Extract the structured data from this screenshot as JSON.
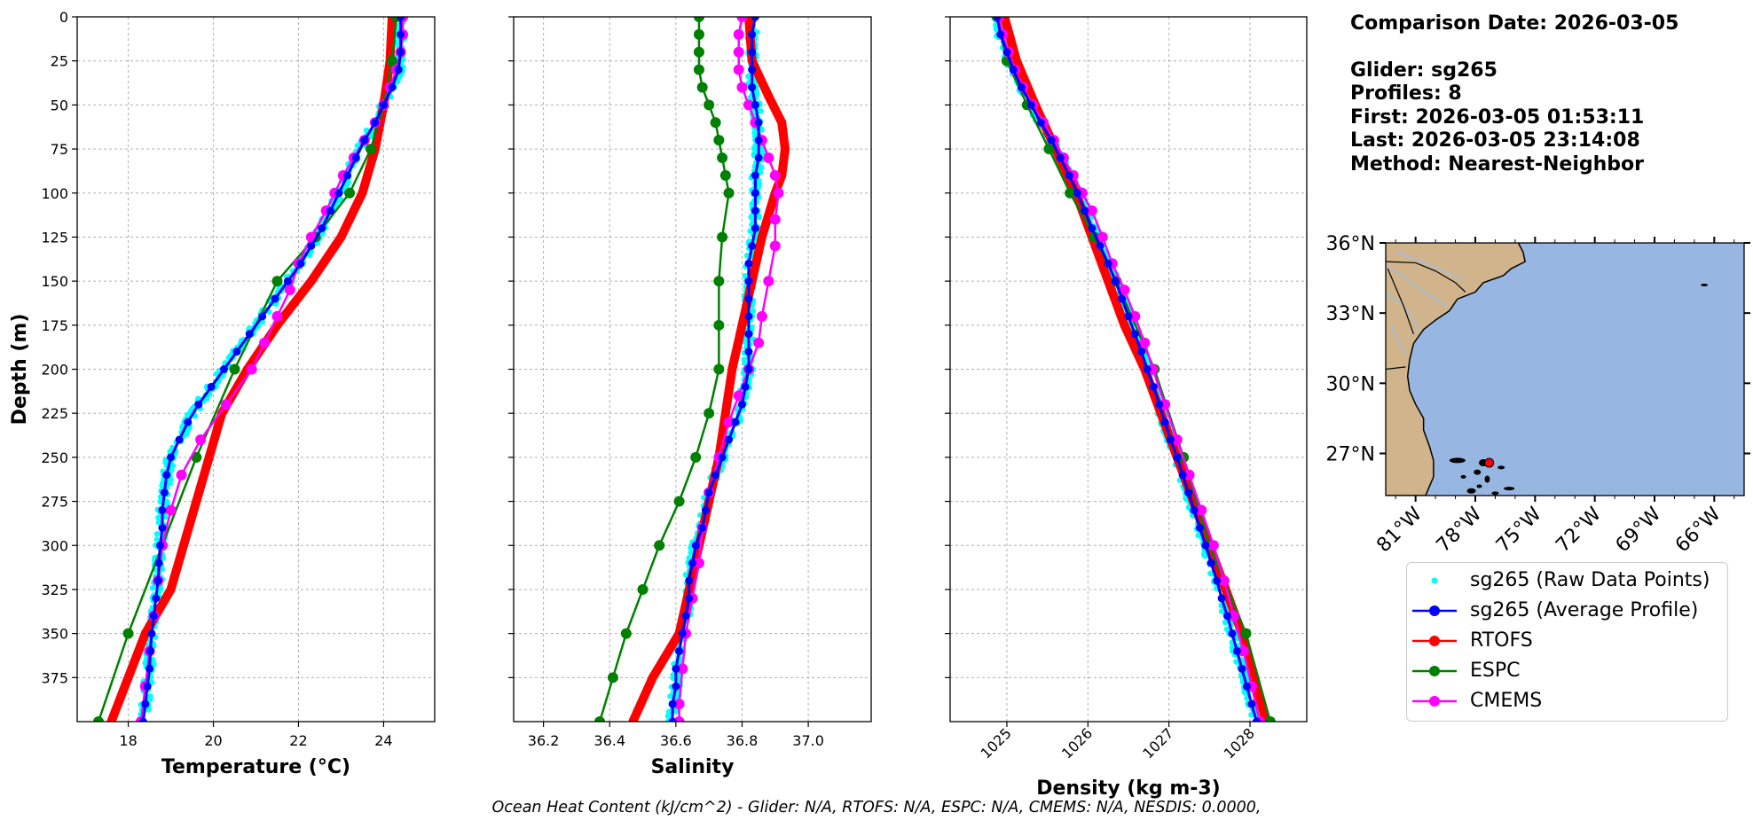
{
  "info": {
    "comparison_date": "Comparison Date: 2026-03-05",
    "glider": "Glider: sg265",
    "profiles": "Profiles: 8",
    "first": "First: 2026-03-05 01:53:11",
    "last": "Last: 2026-03-05 23:14:08",
    "method": "Method: Nearest-Neighbor"
  },
  "footer": "Ocean Heat Content (kJ/cm^2) - Glider: N/A,  RTOFS: N/A,  ESPC: N/A,  CMEMS: N/A,  NESDIS: 0.0000,",
  "legend": [
    {
      "label": "sg265 (Raw Data Points)",
      "color": "#00ffff",
      "style": "dot"
    },
    {
      "label": "sg265 (Average Profile)",
      "color": "#0000ff",
      "style": "line-marker"
    },
    {
      "label": "RTOFS",
      "color": "#ff0000",
      "style": "line-marker"
    },
    {
      "label": "ESPC",
      "color": "#008000",
      "style": "line-marker"
    },
    {
      "label": "CMEMS",
      "color": "#ff00ff",
      "style": "line-marker"
    }
  ],
  "colors": {
    "raw": "#00ffff",
    "glider": "#0000ff",
    "rtofs": "#ff0000",
    "espc": "#008000",
    "cmems": "#ff00ff",
    "land": "#d2b48c",
    "ocean": "#98b6e2"
  },
  "chart_data": [
    {
      "type": "line",
      "xlabel": "Temperature (°C)",
      "ylabel": "Depth (m)",
      "xlim": [
        16.8,
        25.2
      ],
      "ylim": [
        400,
        0
      ],
      "xticks": [
        18,
        20,
        22,
        24
      ],
      "yticks": [
        0,
        25,
        50,
        75,
        100,
        125,
        150,
        175,
        200,
        225,
        250,
        275,
        300,
        325,
        350,
        375
      ],
      "grid": true,
      "series": [
        {
          "name": "sg265 (Average Profile)",
          "depth": [
            0,
            10,
            20,
            30,
            40,
            50,
            60,
            70,
            80,
            90,
            100,
            110,
            120,
            130,
            140,
            150,
            160,
            170,
            180,
            190,
            200,
            210,
            220,
            230,
            240,
            250,
            260,
            270,
            280,
            290,
            300,
            310,
            320,
            330,
            340,
            350,
            360,
            370,
            380,
            390,
            400
          ],
          "values": [
            24.4,
            24.4,
            24.4,
            24.35,
            24.2,
            24.0,
            23.8,
            23.55,
            23.35,
            23.15,
            22.95,
            22.75,
            22.55,
            22.3,
            22.05,
            21.75,
            21.45,
            21.15,
            20.85,
            20.55,
            20.25,
            19.95,
            19.65,
            19.4,
            19.2,
            19.0,
            18.9,
            18.85,
            18.8,
            18.8,
            18.75,
            18.72,
            18.7,
            18.65,
            18.6,
            18.55,
            18.52,
            18.5,
            18.45,
            18.4,
            18.35
          ]
        },
        {
          "name": "RTOFS",
          "depth": [
            0,
            25,
            50,
            75,
            100,
            125,
            150,
            175,
            200,
            225,
            250,
            275,
            300,
            325,
            350,
            375,
            400
          ],
          "values": [
            24.2,
            24.15,
            24.0,
            23.8,
            23.5,
            23.0,
            22.3,
            21.5,
            20.8,
            20.2,
            19.9,
            19.6,
            19.3,
            19.0,
            18.4,
            18.0,
            17.6
          ]
        },
        {
          "name": "ESPC",
          "depth": [
            0,
            25,
            50,
            75,
            100,
            125,
            150,
            200,
            250,
            300,
            350,
            400
          ],
          "values": [
            24.3,
            24.2,
            24.0,
            23.7,
            23.2,
            22.4,
            21.5,
            20.5,
            19.6,
            18.8,
            18.0,
            17.3
          ]
        },
        {
          "name": "CMEMS",
          "depth": [
            0,
            10,
            20,
            30,
            40,
            50,
            60,
            70,
            80,
            90,
            100,
            110,
            125,
            140,
            155,
            170,
            185,
            200,
            220,
            240,
            260,
            280,
            300,
            320,
            340,
            360,
            380,
            400
          ],
          "values": [
            24.45,
            24.45,
            24.4,
            24.3,
            24.15,
            24.0,
            23.8,
            23.55,
            23.3,
            23.05,
            22.85,
            22.65,
            22.3,
            22.0,
            21.8,
            21.5,
            21.2,
            20.9,
            20.3,
            19.7,
            19.25,
            19.0,
            18.8,
            18.7,
            18.6,
            18.5,
            18.4,
            18.3
          ]
        }
      ]
    },
    {
      "type": "line",
      "xlabel": "Salinity",
      "xlim": [
        36.11,
        37.19
      ],
      "ylim": [
        400,
        0
      ],
      "xticks": [
        36.2,
        36.4,
        36.6,
        36.8,
        37.0
      ],
      "grid": true,
      "series": [
        {
          "name": "sg265 (Average Profile)",
          "depth": [
            0,
            10,
            20,
            30,
            40,
            50,
            60,
            70,
            80,
            90,
            100,
            110,
            120,
            130,
            140,
            150,
            160,
            170,
            180,
            190,
            200,
            210,
            220,
            230,
            240,
            250,
            260,
            270,
            280,
            290,
            300,
            310,
            320,
            330,
            340,
            350,
            360,
            370,
            380,
            390,
            400
          ],
          "values": [
            36.84,
            36.83,
            36.83,
            36.83,
            36.83,
            36.84,
            36.85,
            36.85,
            36.85,
            36.84,
            36.84,
            36.84,
            36.84,
            36.83,
            36.82,
            36.82,
            36.82,
            36.82,
            36.82,
            36.82,
            36.82,
            36.81,
            36.8,
            36.78,
            36.76,
            36.74,
            36.72,
            36.7,
            36.69,
            36.68,
            36.66,
            36.65,
            36.64,
            36.64,
            36.63,
            36.62,
            36.61,
            36.6,
            36.6,
            36.59,
            36.59
          ]
        },
        {
          "name": "RTOFS",
          "depth": [
            0,
            25,
            45,
            60,
            75,
            90,
            100,
            125,
            150,
            175,
            200,
            225,
            250,
            275,
            300,
            325,
            350,
            375,
            400
          ],
          "values": [
            36.82,
            36.83,
            36.88,
            36.92,
            36.93,
            36.92,
            36.9,
            36.86,
            36.83,
            36.8,
            36.77,
            36.75,
            36.73,
            36.7,
            36.67,
            36.64,
            36.61,
            36.53,
            36.47
          ]
        },
        {
          "name": "ESPC",
          "depth": [
            0,
            10,
            20,
            30,
            40,
            50,
            60,
            70,
            80,
            90,
            100,
            125,
            150,
            175,
            200,
            225,
            250,
            275,
            300,
            325,
            350,
            375,
            400
          ],
          "values": [
            36.67,
            36.67,
            36.67,
            36.67,
            36.68,
            36.7,
            36.72,
            36.73,
            36.74,
            36.75,
            36.76,
            36.74,
            36.73,
            36.73,
            36.73,
            36.7,
            36.66,
            36.61,
            36.55,
            36.5,
            36.45,
            36.41,
            36.37
          ]
        },
        {
          "name": "CMEMS",
          "depth": [
            0,
            10,
            20,
            30,
            40,
            50,
            60,
            70,
            80,
            90,
            100,
            115,
            130,
            150,
            170,
            185,
            200,
            215,
            230,
            250,
            270,
            290,
            310,
            330,
            350,
            370,
            390,
            400
          ],
          "values": [
            36.8,
            36.79,
            36.79,
            36.79,
            36.8,
            36.82,
            36.84,
            36.86,
            36.88,
            36.9,
            36.91,
            36.9,
            36.9,
            36.88,
            36.86,
            36.85,
            36.82,
            36.79,
            36.76,
            36.73,
            36.7,
            36.68,
            36.67,
            36.65,
            36.63,
            36.62,
            36.61,
            36.61
          ]
        }
      ]
    },
    {
      "type": "line",
      "xlabel": "Density (kg m-3)",
      "xlim": [
        1024.3,
        1028.7
      ],
      "ylim": [
        400,
        0
      ],
      "xticks": [
        1025,
        1026,
        1027,
        1028
      ],
      "grid": true,
      "series": [
        {
          "name": "sg265 (Average Profile)",
          "depth": [
            0,
            10,
            20,
            30,
            40,
            50,
            60,
            70,
            80,
            90,
            100,
            110,
            120,
            130,
            140,
            150,
            160,
            170,
            180,
            190,
            200,
            210,
            220,
            230,
            240,
            250,
            260,
            270,
            280,
            290,
            300,
            310,
            320,
            330,
            340,
            350,
            360,
            370,
            380,
            390,
            400
          ],
          "values": [
            1024.88,
            1024.92,
            1025.0,
            1025.08,
            1025.18,
            1025.3,
            1025.42,
            1025.55,
            1025.66,
            1025.77,
            1025.87,
            1025.96,
            1026.05,
            1026.15,
            1026.25,
            1026.34,
            1026.42,
            1026.5,
            1026.58,
            1026.66,
            1026.73,
            1026.81,
            1026.88,
            1026.95,
            1027.02,
            1027.1,
            1027.17,
            1027.24,
            1027.31,
            1027.38,
            1027.45,
            1027.52,
            1027.59,
            1027.65,
            1027.72,
            1027.78,
            1027.84,
            1027.9,
            1027.96,
            1028.02,
            1028.08
          ]
        },
        {
          "name": "RTOFS",
          "depth": [
            0,
            25,
            50,
            75,
            100,
            125,
            150,
            175,
            200,
            225,
            250,
            275,
            300,
            325,
            350,
            375,
            400
          ],
          "values": [
            1024.97,
            1025.12,
            1025.35,
            1025.6,
            1025.85,
            1026.05,
            1026.25,
            1026.45,
            1026.7,
            1026.9,
            1027.1,
            1027.3,
            1027.5,
            1027.7,
            1027.9,
            1028.05,
            1028.2
          ]
        },
        {
          "name": "ESPC",
          "depth": [
            0,
            25,
            50,
            75,
            100,
            125,
            150,
            200,
            250,
            300,
            350,
            400
          ],
          "values": [
            1024.88,
            1025.0,
            1025.25,
            1025.52,
            1025.78,
            1026.08,
            1026.35,
            1026.82,
            1027.18,
            1027.5,
            1027.95,
            1028.25
          ]
        },
        {
          "name": "CMEMS",
          "depth": [
            0,
            10,
            20,
            30,
            40,
            50,
            60,
            70,
            80,
            90,
            100,
            110,
            125,
            140,
            155,
            170,
            185,
            200,
            220,
            240,
            260,
            280,
            300,
            320,
            340,
            360,
            380,
            400
          ],
          "values": [
            1024.9,
            1024.95,
            1025.02,
            1025.1,
            1025.2,
            1025.32,
            1025.45,
            1025.58,
            1025.7,
            1025.82,
            1025.93,
            1026.05,
            1026.18,
            1026.3,
            1026.45,
            1026.58,
            1026.7,
            1026.8,
            1026.95,
            1027.1,
            1027.25,
            1027.4,
            1027.55,
            1027.68,
            1027.8,
            1027.92,
            1028.02,
            1028.12
          ]
        }
      ]
    },
    {
      "type": "scatter",
      "map": true,
      "lon_range": [
        -82.5,
        -64.5
      ],
      "lat_range": [
        25.2,
        36.0
      ],
      "xticks": [
        "81°W",
        "78°W",
        "75°W",
        "72°W",
        "69°W",
        "66°W"
      ],
      "xtick_values": [
        -81,
        -78,
        -75,
        -72,
        -69,
        -66
      ],
      "yticks": [
        "36°N",
        "33°N",
        "30°N",
        "27°N"
      ],
      "ytick_values": [
        36,
        33,
        30,
        27
      ],
      "point": {
        "lon": -77.3,
        "lat": 26.6
      }
    }
  ]
}
